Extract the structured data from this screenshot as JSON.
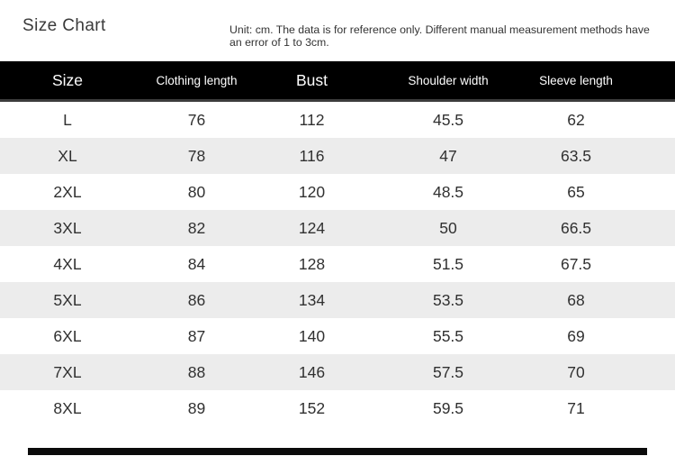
{
  "header": {
    "title": "Size Chart",
    "note": "Unit: cm. The data is for reference only. Different manual measurement methods have an error of 1 to 3cm."
  },
  "chart_data": {
    "type": "table",
    "title": "Size Chart",
    "note": "Unit: cm. The data is for reference only. Different manual measurement methods have an error of 1 to 3cm.",
    "unit": "cm",
    "columns": [
      "Size",
      "Clothing length",
      "Bust",
      "Shoulder width",
      "Sleeve length"
    ],
    "rows": [
      [
        "L",
        "76",
        "112",
        "45.5",
        "62"
      ],
      [
        "XL",
        "78",
        "116",
        "47",
        "63.5"
      ],
      [
        "2XL",
        "80",
        "120",
        "48.5",
        "65"
      ],
      [
        "3XL",
        "82",
        "124",
        "50",
        "66.5"
      ],
      [
        "4XL",
        "84",
        "128",
        "51.5",
        "67.5"
      ],
      [
        "5XL",
        "86",
        "134",
        "53.5",
        "68"
      ],
      [
        "6XL",
        "87",
        "140",
        "55.5",
        "69"
      ],
      [
        "7XL",
        "88",
        "146",
        "57.5",
        "70"
      ],
      [
        "8XL",
        "89",
        "152",
        "59.5",
        "71"
      ]
    ],
    "layout_hints": {
      "header_style": "black background, white text",
      "row_striping": "white / light gray alternating",
      "emphasized_columns": [
        "Size",
        "Bust"
      ]
    }
  },
  "colors": {
    "header_bg": "#000000",
    "header_text": "#ffffff",
    "stripe": "#ececec",
    "body_text": "#303030",
    "footer_bar": "#0b0b0b"
  }
}
